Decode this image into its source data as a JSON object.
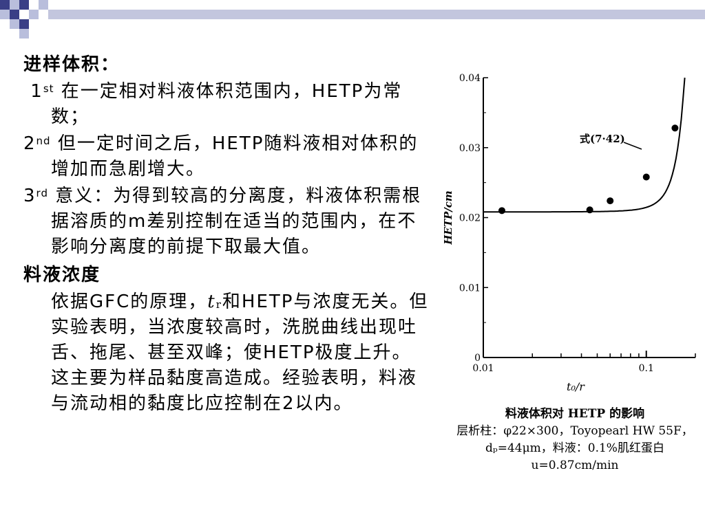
{
  "slide": {
    "heading_volume": "进样体积：",
    "item1_label": "1",
    "item1_sup": "st",
    "item1_text": "在一定相对料液体积范围内，HETP为常数；",
    "item2_label": "2",
    "item2_sup": "nd",
    "item2_text": "但一定时间之后，HETP随料液相对体积的增加而急剧增大。",
    "item3_label": "3",
    "item3_sup": "rd",
    "item3_text": "意义：为得到较高的分离度，料液体积需根据溶质的m差别控制在适当的范围内，在不影响分离度的前提下取最大值。",
    "heading_conc": "料液浓度",
    "para_pre": "依据GFC的原理，",
    "para_tr_t": "t",
    "para_tr_sub": "r",
    "para_post": "和HETP与浓度无关。但实验表明，当浓度较高时，洗脱曲线出现吐舌、拖尾、甚至双峰；使HETP极度上升。这主要为样品黏度高造成。经验表明，料液与流动相的黏度比应控制在2以内。"
  },
  "chart_data": {
    "type": "scatter",
    "ylabel": "HETP/cm",
    "xlabel": "t₀/r",
    "x_scale": "log",
    "xlim": [
      0.01,
      0.2
    ],
    "ylim": [
      0,
      0.04
    ],
    "y_ticks": [
      "0",
      "0.01",
      "0.02",
      "0.03",
      "0.04"
    ],
    "x_ticks": [
      "0.01",
      "0.1"
    ],
    "points": [
      {
        "x": 0.013,
        "y": 0.021
      },
      {
        "x": 0.045,
        "y": 0.0211
      },
      {
        "x": 0.06,
        "y": 0.0224
      },
      {
        "x": 0.1,
        "y": 0.0258
      },
      {
        "x": 0.15,
        "y": 0.0328
      }
    ],
    "curve_label": "式(7·42)",
    "grid": false
  },
  "caption": {
    "line1": "料液体积对 HETP 的影响",
    "line2": "层析柱：φ22×300，Toyopearl HW 55F，",
    "line3": "dₚ=44μm，料液：0.1%肌红蛋白",
    "line4": "u=0.87cm/min"
  },
  "colors": {
    "deco_dark": "#3a3f86",
    "deco_light": "#b9bedc",
    "deco_bar": "#c3c6de"
  }
}
